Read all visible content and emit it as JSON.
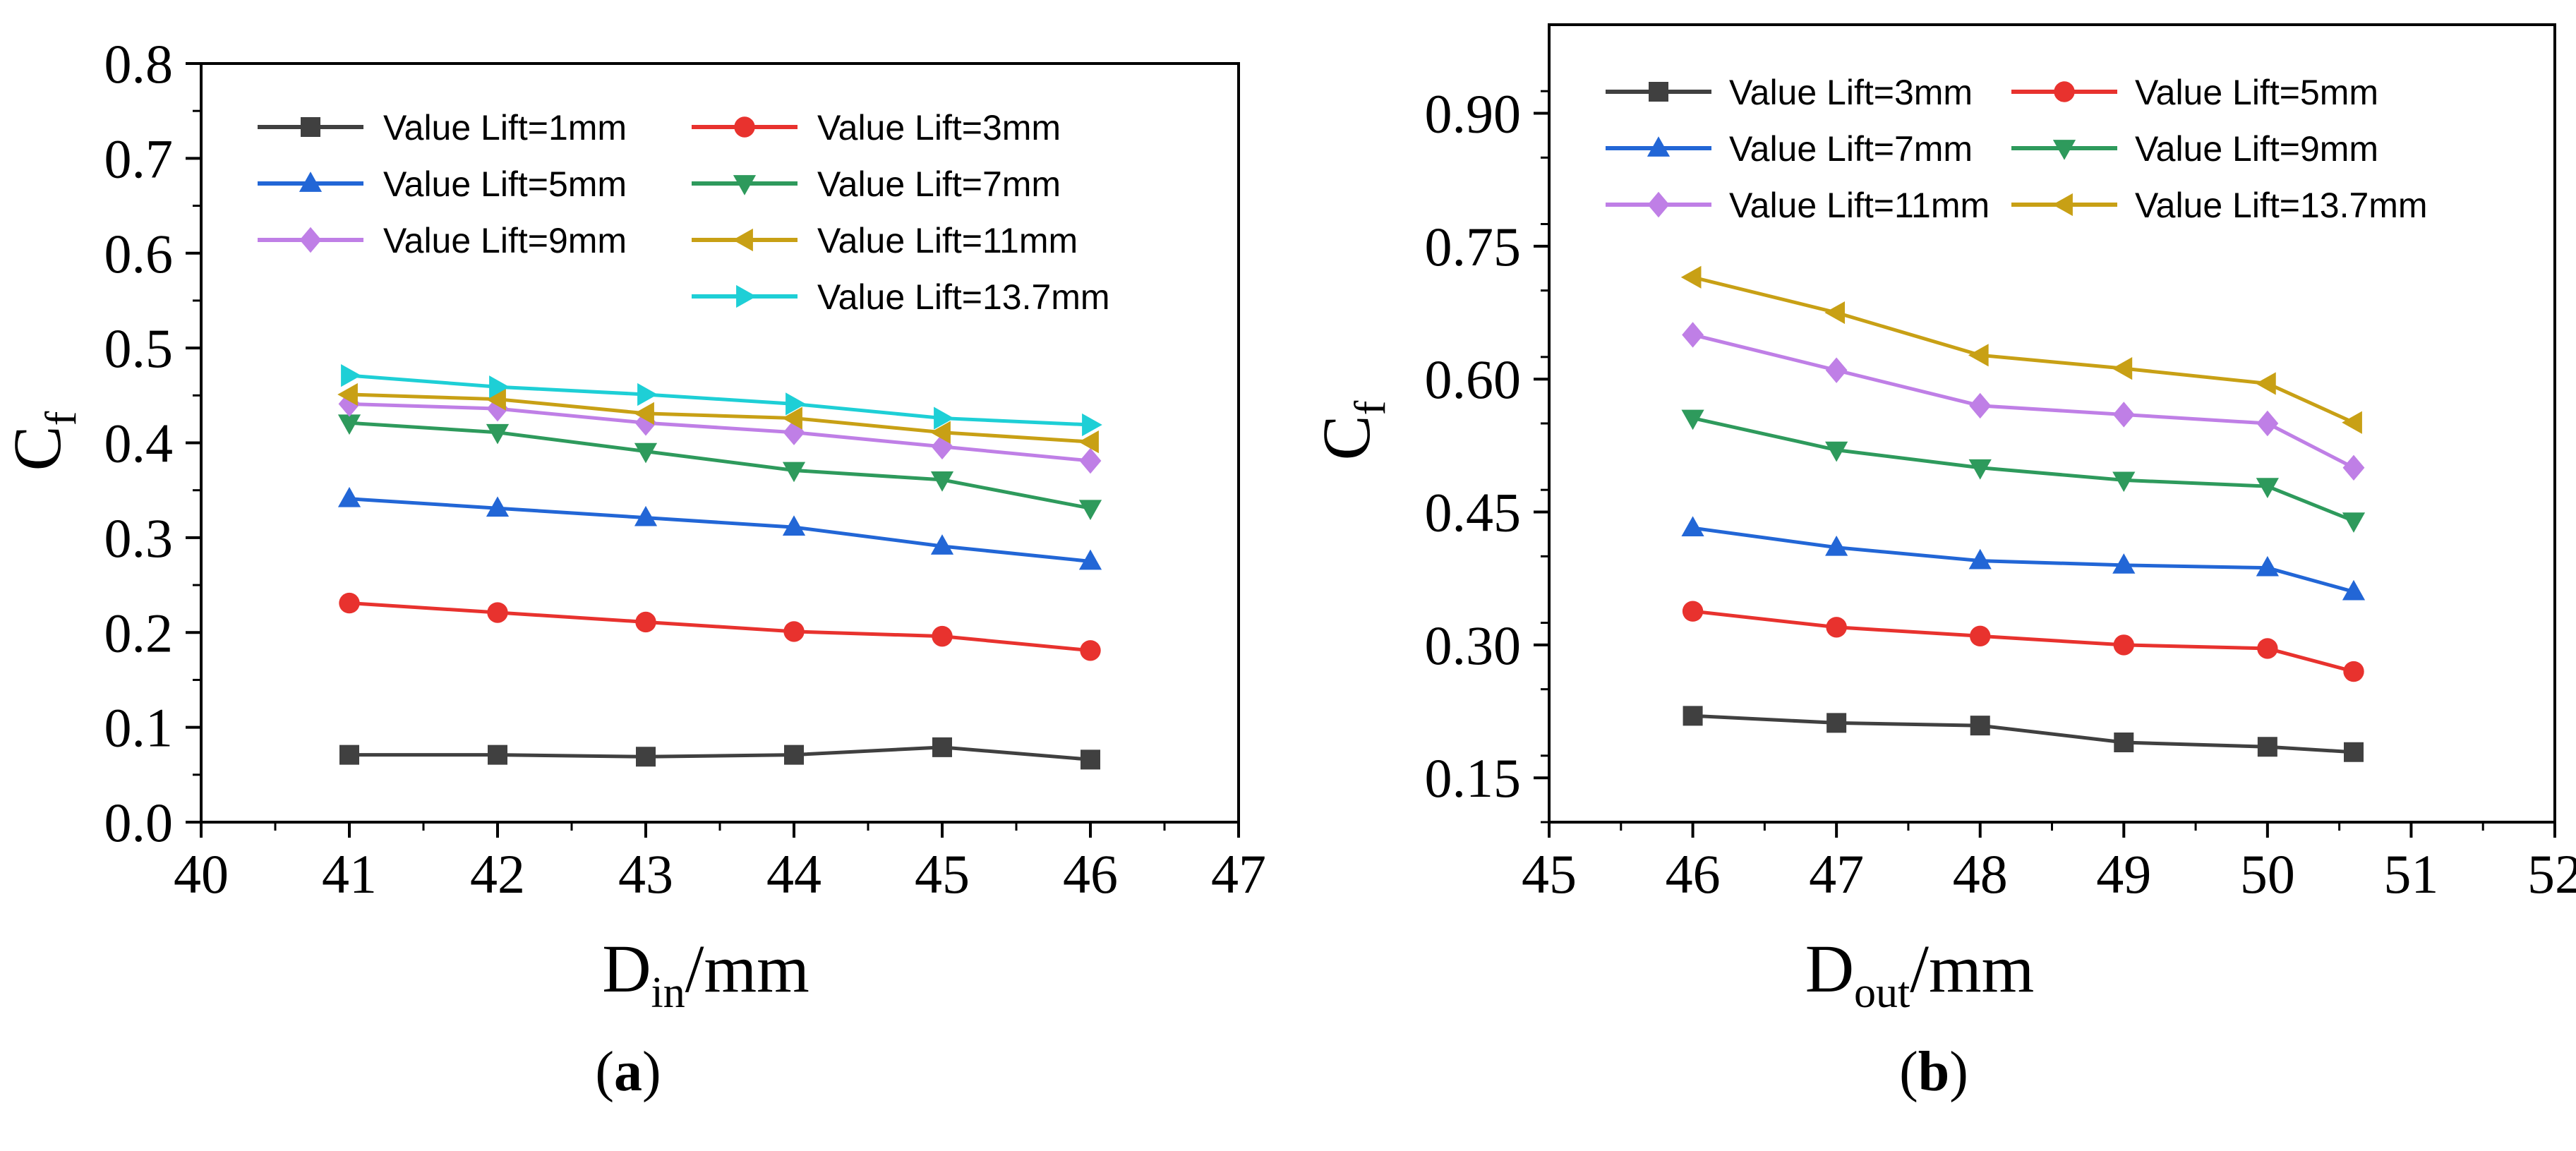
{
  "chart_data": [
    {
      "type": "line",
      "panel": "a",
      "caption_prefix": "(",
      "caption_letter": "a",
      "caption_suffix": ")",
      "xlabel_main": "D",
      "xlabel_sub": "in",
      "xlabel_unit": "/mm",
      "ylabel_main": "C",
      "ylabel_sub": "f",
      "xlim": [
        40,
        47
      ],
      "ylim": [
        0,
        0.8
      ],
      "xticks": [
        "40",
        "41",
        "42",
        "43",
        "44",
        "45",
        "46",
        "47"
      ],
      "yticks": [
        "0.0",
        "0.1",
        "0.2",
        "0.3",
        "0.4",
        "0.5",
        "0.6",
        "0.7",
        "0.8"
      ],
      "x": [
        41,
        42,
        43,
        44,
        45,
        46
      ],
      "series": [
        {
          "name": "Value Lift=1mm",
          "color": "#404040",
          "marker": "square",
          "values": [
            0.071,
            0.071,
            0.069,
            0.071,
            0.079,
            0.066
          ]
        },
        {
          "name": "Value Lift=3mm",
          "color": "#e8322e",
          "marker": "circle",
          "values": [
            0.231,
            0.221,
            0.211,
            0.201,
            0.196,
            0.181
          ]
        },
        {
          "name": "Value Lift=5mm",
          "color": "#2266d6",
          "marker": "triangle-up",
          "values": [
            0.341,
            0.331,
            0.321,
            0.311,
            0.291,
            0.275
          ]
        },
        {
          "name": "Value Lift=7mm",
          "color": "#2e9a5c",
          "marker": "triangle-down",
          "values": [
            0.421,
            0.411,
            0.391,
            0.371,
            0.361,
            0.331
          ]
        },
        {
          "name": "Value Lift=9mm",
          "color": "#bf7fe6",
          "marker": "diamond",
          "values": [
            0.441,
            0.436,
            0.421,
            0.411,
            0.396,
            0.381
          ]
        },
        {
          "name": "Value Lift=11mm",
          "color": "#c8a015",
          "marker": "triangle-left",
          "values": [
            0.451,
            0.446,
            0.431,
            0.426,
            0.411,
            0.401
          ]
        },
        {
          "name": "Value Lift=13.7mm",
          "color": "#1ecfd6",
          "marker": "triangle-right",
          "values": [
            0.471,
            0.459,
            0.451,
            0.441,
            0.426,
            0.419
          ]
        }
      ]
    },
    {
      "type": "line",
      "panel": "b",
      "caption_prefix": "(",
      "caption_letter": "b",
      "caption_suffix": ")",
      "xlabel_main": "D",
      "xlabel_sub": "out",
      "xlabel_unit": "/mm",
      "ylabel_main": "C",
      "ylabel_sub": "f",
      "xlim": [
        45,
        52
      ],
      "ylim": [
        0.1,
        1.0
      ],
      "xticks": [
        "45",
        "46",
        "47",
        "48",
        "49",
        "50",
        "51",
        "52"
      ],
      "yticks": [
        "0.15",
        "0.30",
        "0.45",
        "0.60",
        "0.75",
        "0.90"
      ],
      "x": [
        46,
        47,
        48,
        49,
        50,
        50.6
      ],
      "series": [
        {
          "name": "Value Lift=3mm",
          "color": "#404040",
          "marker": "square",
          "values": [
            0.22,
            0.212,
            0.209,
            0.19,
            0.185,
            0.179
          ]
        },
        {
          "name": "Value Lift=5mm",
          "color": "#e8322e",
          "marker": "circle",
          "values": [
            0.338,
            0.32,
            0.31,
            0.3,
            0.296,
            0.27
          ]
        },
        {
          "name": "Value Lift=7mm",
          "color": "#2266d6",
          "marker": "triangle-up",
          "values": [
            0.432,
            0.41,
            0.395,
            0.39,
            0.387,
            0.36
          ]
        },
        {
          "name": "Value Lift=9mm",
          "color": "#2e9a5c",
          "marker": "triangle-down",
          "values": [
            0.556,
            0.52,
            0.5,
            0.486,
            0.479,
            0.44
          ]
        },
        {
          "name": "Value Lift=11mm",
          "color": "#bf7fe6",
          "marker": "diamond",
          "values": [
            0.65,
            0.61,
            0.57,
            0.56,
            0.55,
            0.5
          ]
        },
        {
          "name": "Value Lift=13.7mm",
          "color": "#c8a015",
          "marker": "triangle-left",
          "values": [
            0.715,
            0.675,
            0.627,
            0.612,
            0.595,
            0.551
          ]
        }
      ]
    }
  ]
}
